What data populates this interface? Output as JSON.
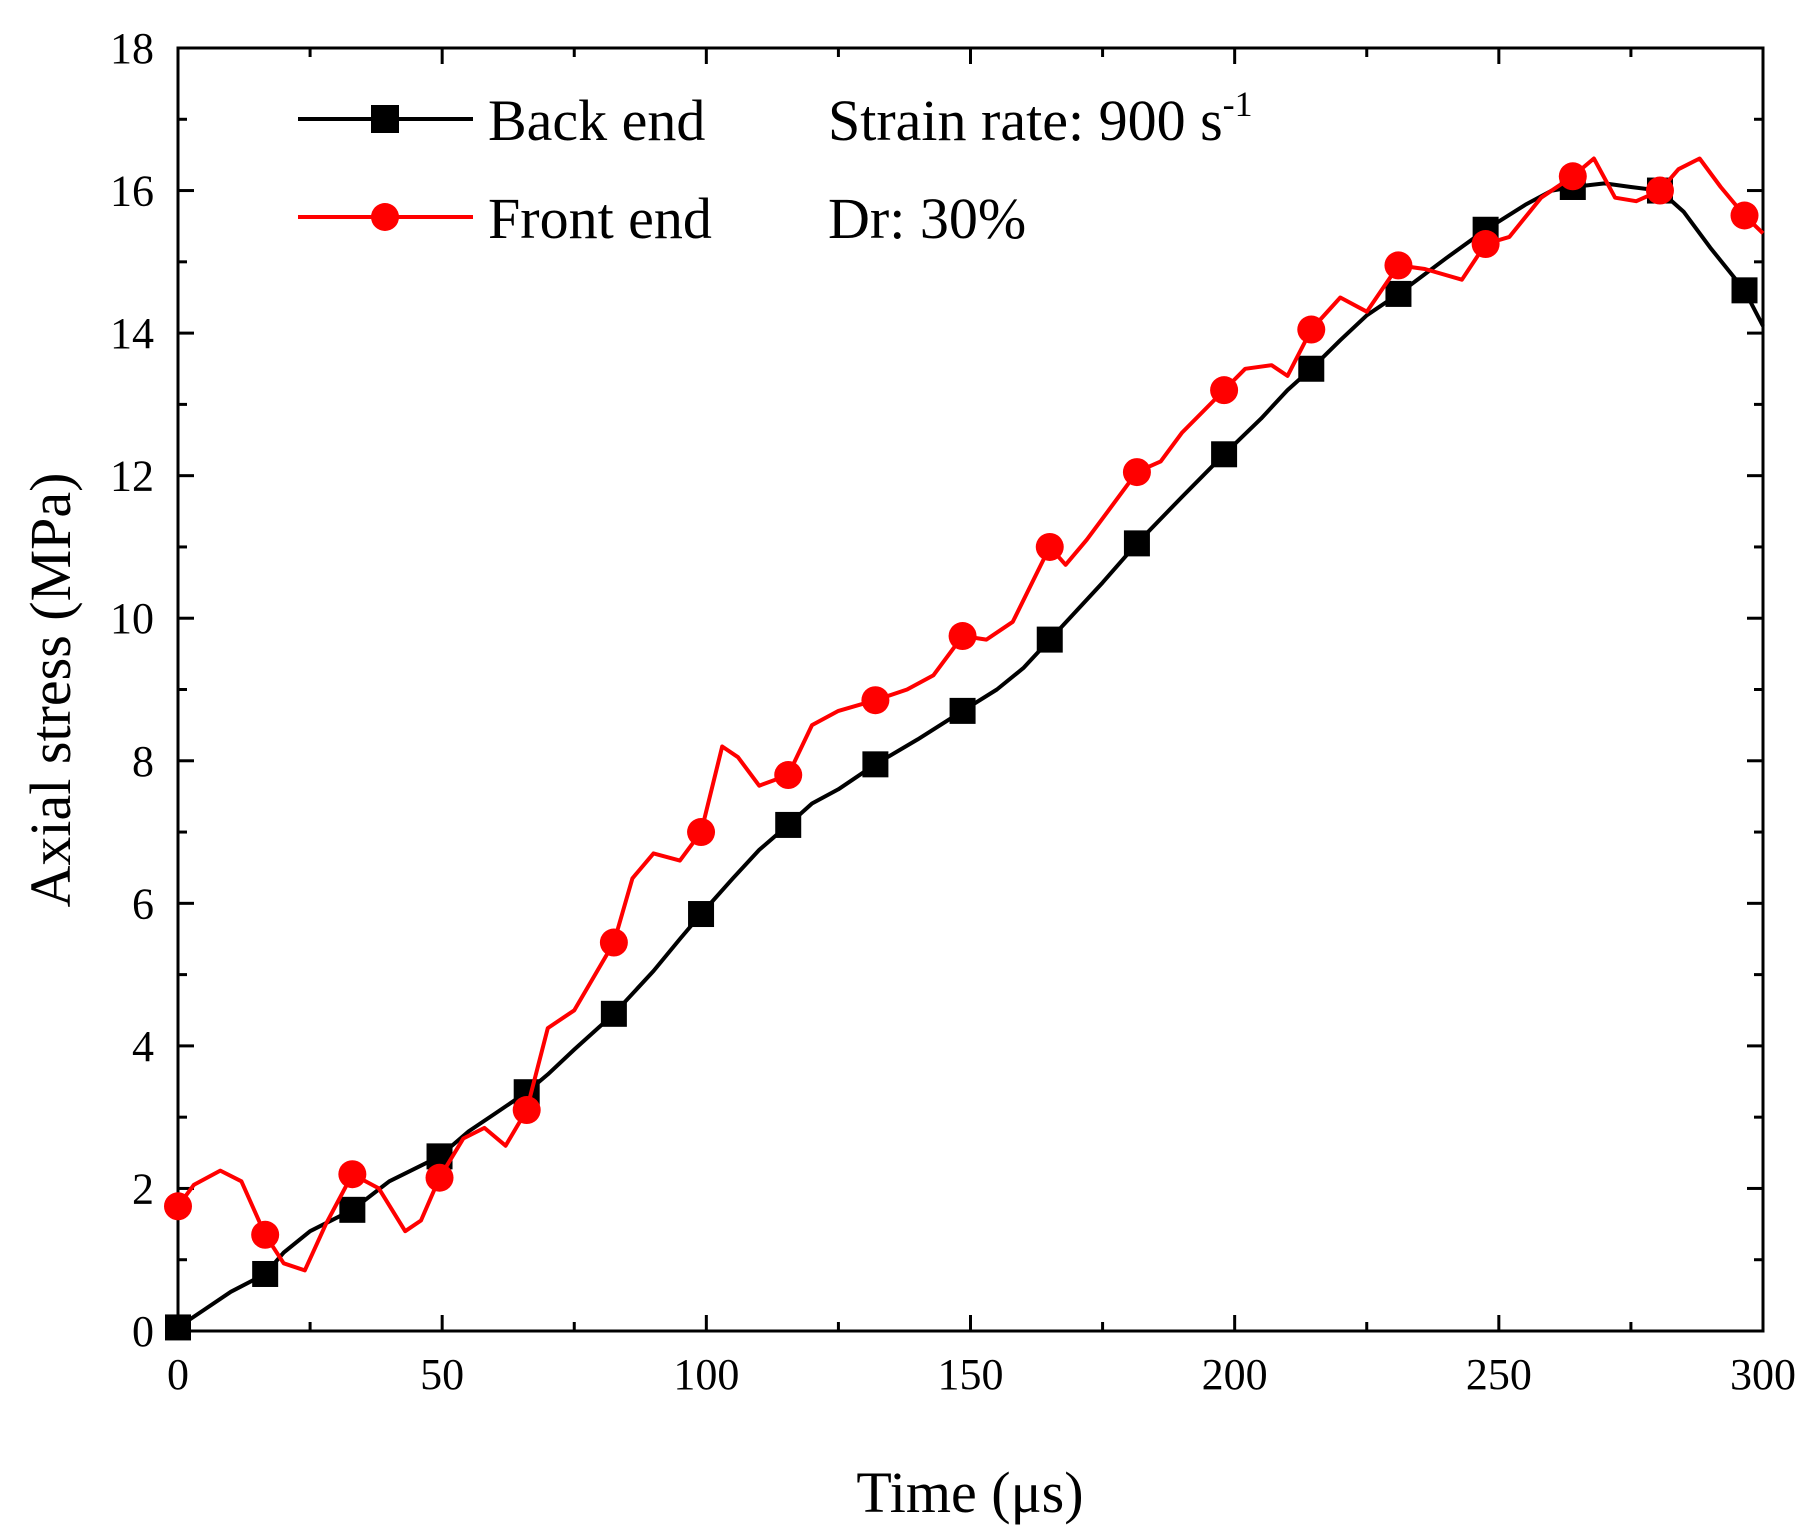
{
  "chart_data": {
    "type": "line",
    "title": "",
    "xlabel": "Time (μs)",
    "ylabel": "Axial stress (MPa)",
    "xlim": [
      0,
      300
    ],
    "ylim": [
      0,
      18
    ],
    "xticks": [
      0,
      50,
      100,
      150,
      200,
      250,
      300
    ],
    "yticks": [
      0,
      2,
      4,
      6,
      8,
      10,
      12,
      14,
      16,
      18
    ],
    "xtick_labels": [
      "0",
      "50",
      "100",
      "150",
      "200",
      "250",
      "300"
    ],
    "ytick_labels": [
      "0",
      "2",
      "4",
      "6",
      "8",
      "10",
      "12",
      "14",
      "16",
      "18"
    ],
    "grid": false,
    "legend_position": "top-left",
    "annotations": {
      "strain_rate": "Strain rate: 900 s",
      "strain_rate_unit_exp": "-1",
      "dr": "Dr: 30%"
    },
    "series": [
      {
        "name": "Back end",
        "color": "#000000",
        "marker": "square",
        "x": [
          0,
          5,
          10,
          16.5,
          20,
          25,
          33,
          40,
          49.5,
          55,
          60,
          66,
          70,
          75,
          82.5,
          90,
          95,
          99,
          105,
          110,
          115.5,
          120,
          125,
          132,
          140,
          148.5,
          155,
          160,
          165,
          170,
          175,
          181.5,
          190,
          198,
          205,
          210,
          214.5,
          220,
          225,
          231,
          240,
          247.5,
          255,
          260,
          264,
          270,
          275,
          280.5,
          285,
          290,
          296.5,
          300
        ],
        "y": [
          0.05,
          0.3,
          0.55,
          0.8,
          1.1,
          1.4,
          1.7,
          2.1,
          2.45,
          2.8,
          3.05,
          3.35,
          3.6,
          3.95,
          4.45,
          5.05,
          5.5,
          5.85,
          6.35,
          6.75,
          7.1,
          7.4,
          7.6,
          7.95,
          8.3,
          8.7,
          9.0,
          9.3,
          9.7,
          10.1,
          10.5,
          11.05,
          11.7,
          12.3,
          12.8,
          13.2,
          13.5,
          13.9,
          14.25,
          14.55,
          15.05,
          15.45,
          15.8,
          16.0,
          16.05,
          16.1,
          16.05,
          16.0,
          15.7,
          15.2,
          14.6,
          14.1
        ]
      },
      {
        "name": "Front end",
        "color": "#ff0000",
        "marker": "circle",
        "x": [
          0,
          3,
          8,
          12,
          16.5,
          20,
          24,
          28,
          33,
          38,
          43,
          46,
          49.5,
          54,
          58,
          62,
          66,
          70,
          75,
          82.5,
          86,
          90,
          95,
          99,
          103,
          106,
          110,
          115.5,
          120,
          125,
          132,
          138,
          143,
          148.5,
          153,
          158,
          162,
          165,
          168,
          172,
          176,
          181.5,
          186,
          190,
          194,
          198,
          202,
          207,
          210,
          214.5,
          220,
          225,
          231,
          236,
          243,
          247.5,
          252,
          258,
          264,
          268,
          272,
          276,
          280.5,
          284,
          288,
          292,
          296.5,
          300
        ],
        "y": [
          1.75,
          2.05,
          2.25,
          2.1,
          1.35,
          0.95,
          0.85,
          1.5,
          2.2,
          2.0,
          1.4,
          1.55,
          2.15,
          2.7,
          2.85,
          2.6,
          3.1,
          4.25,
          4.5,
          5.45,
          6.35,
          6.7,
          6.6,
          7.0,
          8.2,
          8.05,
          7.65,
          7.8,
          8.5,
          8.7,
          8.85,
          9.0,
          9.2,
          9.75,
          9.7,
          9.95,
          10.55,
          11.0,
          10.75,
          11.1,
          11.5,
          12.05,
          12.2,
          12.6,
          12.9,
          13.2,
          13.5,
          13.55,
          13.4,
          14.05,
          14.5,
          14.3,
          14.95,
          14.9,
          14.75,
          15.25,
          15.35,
          15.9,
          16.2,
          16.45,
          15.9,
          15.85,
          16.0,
          16.3,
          16.45,
          16.05,
          15.65,
          15.4
        ]
      }
    ],
    "marker_x": {
      "Back end": [
        0,
        16.5,
        33,
        49.5,
        66,
        82.5,
        99,
        115.5,
        132,
        148.5,
        165,
        181.5,
        198,
        214.5,
        231,
        247.5,
        264,
        280.5,
        296.5
      ],
      "Front end": [
        0,
        16.5,
        33,
        49.5,
        66,
        82.5,
        99,
        115.5,
        132,
        148.5,
        165,
        181.5,
        198,
        214.5,
        231,
        247.5,
        264,
        280.5,
        296.5
      ]
    }
  }
}
